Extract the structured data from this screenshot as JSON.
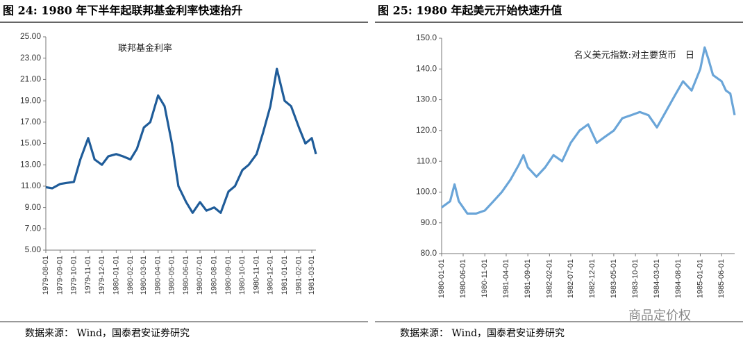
{
  "watermark": "商品定价权",
  "chart_data": [
    {
      "type": "line",
      "title": "图 24: 1980 年下半年起联邦基金利率快速抬升",
      "annotation": "联邦基金利率",
      "source": "数据来源： Wind，国泰君安证券研究",
      "color": "#1f5c99",
      "x": [
        "1979-08-01",
        "1979-08-15",
        "1979-09-01",
        "1979-09-15",
        "1979-10-01",
        "1979-10-15",
        "1979-11-01",
        "1979-11-15",
        "1979-12-01",
        "1979-12-15",
        "1980-01-01",
        "1980-01-15",
        "1980-02-01",
        "1980-02-15",
        "1980-03-01",
        "1980-03-15",
        "1980-04-01",
        "1980-04-15",
        "1980-05-01",
        "1980-05-15",
        "1980-06-01",
        "1980-06-15",
        "1980-07-01",
        "1980-07-15",
        "1980-08-01",
        "1980-08-15",
        "1980-09-01",
        "1980-09-15",
        "1980-10-01",
        "1980-10-15",
        "1980-11-01",
        "1980-11-15",
        "1980-12-01",
        "1980-12-15",
        "1981-01-01",
        "1981-01-15",
        "1981-02-01",
        "1981-02-15",
        "1981-03-01",
        "1981-03-10"
      ],
      "values": [
        10.9,
        10.8,
        11.2,
        11.3,
        11.4,
        13.5,
        15.5,
        13.5,
        13.0,
        13.8,
        14.0,
        13.8,
        13.5,
        14.5,
        16.5,
        17.0,
        19.5,
        18.5,
        15.0,
        11.0,
        9.5,
        8.5,
        9.5,
        8.7,
        9.0,
        8.5,
        10.5,
        11.0,
        12.5,
        13.0,
        14.0,
        16.0,
        18.5,
        22.0,
        19.0,
        18.5,
        16.5,
        15.0,
        15.5,
        14.0
      ],
      "ylim": [
        5,
        25
      ],
      "yticks": [
        {
          "value": 5,
          "label": "5.00"
        },
        {
          "value": 7,
          "label": "7.00"
        },
        {
          "value": 9,
          "label": "9.00"
        },
        {
          "value": 11,
          "label": "11.00"
        },
        {
          "value": 13,
          "label": "13.00"
        },
        {
          "value": 15,
          "label": "15.00"
        },
        {
          "value": 17,
          "label": "17.00"
        },
        {
          "value": 19,
          "label": "19.00"
        },
        {
          "value": 21,
          "label": "21.00"
        },
        {
          "value": 23,
          "label": "23.00"
        },
        {
          "value": 25,
          "label": "25.00"
        }
      ],
      "xlim": [
        "1979-08-01",
        "1981-03-10"
      ],
      "xticks": [
        "1979-08-01",
        "1979-09-01",
        "1979-10-01",
        "1979-11-01",
        "1979-12-01",
        "1980-01-01",
        "1980-02-01",
        "1980-03-01",
        "1980-04-01",
        "1980-05-01",
        "1980-06-01",
        "1980-07-01",
        "1980-08-01",
        "1980-09-01",
        "1980-10-01",
        "1980-11-01",
        "1980-12-01",
        "1981-01-01",
        "1981-02-01",
        "1981-03-01"
      ]
    },
    {
      "type": "line",
      "title": "图 25: 1980 年起美元开始快速升值",
      "annotation": "名义美元指数:对主要货币　日",
      "source": "数据来源： Wind，国泰君安证券研究",
      "color": "#6aa5d8",
      "x": [
        "1980-01-01",
        "1980-03-01",
        "1980-04-01",
        "1980-05-01",
        "1980-07-01",
        "1980-09-01",
        "1980-11-01",
        "1981-01-01",
        "1981-03-01",
        "1981-05-01",
        "1981-07-01",
        "1981-08-01",
        "1981-09-01",
        "1981-11-01",
        "1982-01-01",
        "1982-03-01",
        "1982-05-01",
        "1982-07-01",
        "1982-09-01",
        "1982-11-01",
        "1983-01-01",
        "1983-03-01",
        "1983-05-01",
        "1983-07-01",
        "1983-09-01",
        "1983-11-01",
        "1984-01-01",
        "1984-03-01",
        "1984-05-01",
        "1984-07-01",
        "1984-09-01",
        "1984-11-01",
        "1985-01-01",
        "1985-02-01",
        "1985-03-01",
        "1985-04-01",
        "1985-06-01",
        "1985-07-01",
        "1985-08-01",
        "1985-09-01"
      ],
      "values": [
        95,
        97,
        102.5,
        97,
        93,
        93,
        94,
        97,
        100,
        104,
        109,
        112,
        108,
        105,
        108,
        112,
        110,
        116,
        120,
        122,
        116,
        118,
        120,
        124,
        125,
        126,
        125,
        121,
        126,
        131,
        136,
        133,
        140,
        147,
        143,
        138,
        136,
        133,
        132,
        125
      ],
      "ylim": [
        80,
        150
      ],
      "yticks": [
        {
          "value": 80,
          "label": "80.0"
        },
        {
          "value": 90,
          "label": "90.0"
        },
        {
          "value": 100,
          "label": "100.0"
        },
        {
          "value": 110,
          "label": "110.0"
        },
        {
          "value": 120,
          "label": "120.0"
        },
        {
          "value": 130,
          "label": "130.0"
        },
        {
          "value": 140,
          "label": "140.0"
        },
        {
          "value": 150,
          "label": "150.0"
        }
      ],
      "xlim": [
        "1980-01-01",
        "1985-09-01"
      ],
      "xticks": [
        "1980-01-01",
        "1980-06-01",
        "1980-11-01",
        "1981-04-01",
        "1981-09-01",
        "1982-02-01",
        "1982-07-01",
        "1982-12-01",
        "1983-05-01",
        "1983-10-01",
        "1984-03-01",
        "1984-08-01",
        "1985-01-01",
        "1985-06-01"
      ]
    }
  ]
}
